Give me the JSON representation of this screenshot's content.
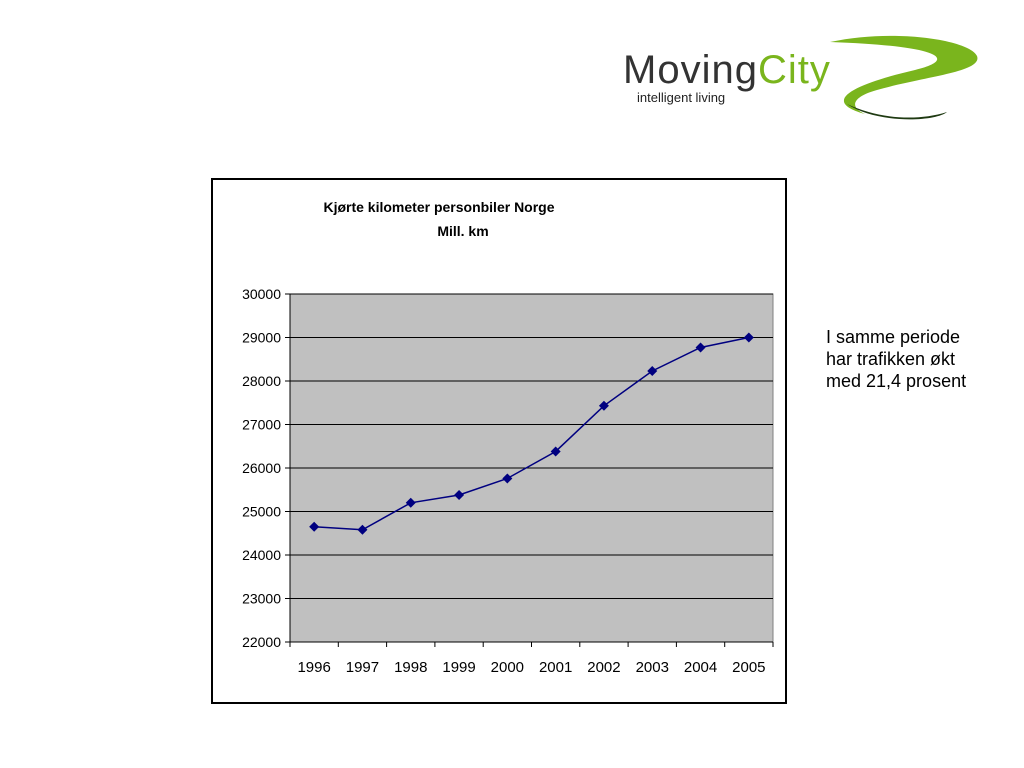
{
  "logo": {
    "brand": "MovingCity",
    "tagline": "intelligent living",
    "colors": {
      "primary": "#7ab51d",
      "text": "#333333",
      "swoosh_dark": "#1f3a12"
    }
  },
  "note": {
    "lines": [
      "I samme periode",
      "har trafikken økt",
      "med 21,4 prosent"
    ]
  },
  "chart_data": {
    "type": "line",
    "title": "Kjørte kilometer personbiler Norge",
    "subtitle": "Mill. km",
    "xlabel": "",
    "ylabel": "",
    "categories": [
      "1996",
      "1997",
      "1998",
      "1999",
      "2000",
      "2001",
      "2002",
      "2003",
      "2004",
      "2005"
    ],
    "series": [
      {
        "values": [
          24650,
          24580,
          25200,
          25380,
          25760,
          26380,
          27430,
          28230,
          28770,
          29000
        ]
      }
    ],
    "ylim": [
      22000,
      30000
    ],
    "yticks": [
      "22000",
      "23000",
      "24000",
      "25000",
      "26000",
      "27000",
      "28000",
      "29000",
      "30000"
    ],
    "grid": true,
    "legend": "none",
    "colors": {
      "plot_bg": "#c0c0c0",
      "line": "#000080",
      "marker": "#000080",
      "grid": "#000000"
    }
  }
}
